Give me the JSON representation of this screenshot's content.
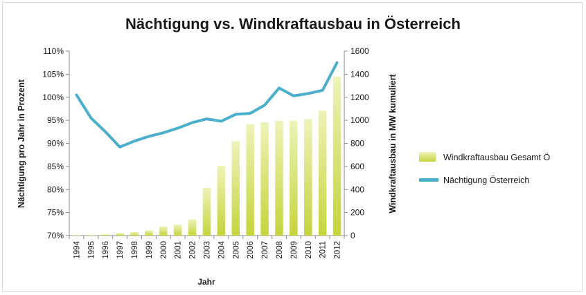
{
  "chart_data": {
    "type": "bar+line",
    "title": "Nächtigung vs. Windkraftausbau in Österreich",
    "xlabel": "Jahr",
    "ylabel_left": "Nächtigung pro Jahr in Prozent",
    "ylabel_right": "Windkraftausbau in MW kumuliert",
    "categories": [
      "1994",
      "1995",
      "1996",
      "1997",
      "1998",
      "1999",
      "2000",
      "2001",
      "2002",
      "2003",
      "2004",
      "2005",
      "2006",
      "2007",
      "2008",
      "2009",
      "2010",
      "2011",
      "2012"
    ],
    "y_left": {
      "min": 70,
      "max": 110,
      "step": 5,
      "tick_labels": [
        "70%",
        "75%",
        "80%",
        "85%",
        "90%",
        "95%",
        "100%",
        "105%",
        "110%"
      ]
    },
    "y_right": {
      "min": 0,
      "max": 1600,
      "step": 200,
      "tick_labels": [
        "0",
        "200",
        "400",
        "600",
        "800",
        "1000",
        "1200",
        "1400",
        "1600"
      ]
    },
    "series": [
      {
        "name": "Windkraftausbau Gesamt Ö",
        "type": "bar",
        "axis": "right",
        "color": "#d4e06a",
        "values": [
          3,
          5,
          10,
          20,
          30,
          45,
          80,
          95,
          140,
          415,
          605,
          819,
          965,
          982,
          995,
          995,
          1011,
          1084,
          1378
        ]
      },
      {
        "name": "Nächtigung Österreich",
        "type": "line",
        "axis": "left",
        "color": "#4aaecd",
        "values": [
          100.5,
          95.5,
          92.5,
          89.2,
          90.5,
          91.5,
          92.3,
          93.3,
          94.5,
          95.3,
          94.8,
          96.3,
          96.5,
          98.3,
          102.0,
          100.3,
          100.8,
          101.5,
          107.5
        ]
      }
    ],
    "legend": "right",
    "grid": false
  }
}
